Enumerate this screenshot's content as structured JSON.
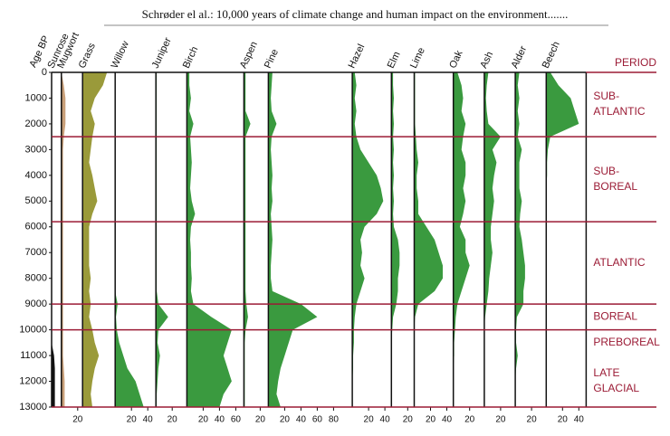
{
  "chart_data": {
    "type": "pollen",
    "title": "Schrøder el al.: 10,000 years of climate change and human impact on the environment.......",
    "ylabel": "Age BP",
    "ylim": [
      0,
      13000
    ],
    "yticks": [
      0,
      1000,
      2000,
      3000,
      4000,
      5000,
      6000,
      7000,
      8000,
      9000,
      10000,
      11000,
      12000,
      13000
    ],
    "x": [
      0,
      500,
      1000,
      1500,
      2000,
      2500,
      3000,
      3500,
      4000,
      4500,
      5000,
      5500,
      6000,
      6500,
      7000,
      7500,
      8000,
      8500,
      9000,
      9500,
      10000,
      10500,
      11000,
      11500,
      12000,
      12500,
      13000
    ],
    "series": [
      {
        "name": "Sunrose",
        "color": "#111111",
        "xlim": [
          0,
          12
        ],
        "values": [
          0,
          0,
          0,
          0,
          0,
          0,
          0,
          0,
          0,
          0,
          0,
          0,
          0,
          0,
          0,
          0,
          0,
          0,
          0,
          0,
          0,
          0,
          3,
          4,
          4,
          4,
          4
        ]
      },
      {
        "name": "Mugwort",
        "color": "#c9a07a",
        "xlim": [
          0,
          26
        ],
        "xticks": [
          20
        ],
        "values": [
          0,
          3,
          5,
          5,
          5,
          3,
          2,
          2,
          2,
          2,
          2,
          2,
          2,
          2,
          2,
          2,
          2,
          2,
          2,
          2,
          2,
          2,
          2,
          3,
          4,
          4,
          4
        ]
      },
      {
        "name": "Grass",
        "color": "#9a9a3a",
        "xlim": [
          0,
          40
        ],
        "values": [
          30,
          25,
          15,
          10,
          15,
          12,
          10,
          8,
          12,
          15,
          18,
          12,
          8,
          8,
          8,
          8,
          10,
          8,
          10,
          8,
          12,
          15,
          20,
          15,
          12,
          10,
          12
        ]
      },
      {
        "name": "Willow",
        "color": "#3a9a3f",
        "xlim": [
          0,
          50
        ],
        "xticks": [
          20,
          40
        ],
        "values": [
          0,
          0,
          0,
          0,
          0,
          0,
          0,
          0,
          0,
          0,
          0,
          0,
          0,
          0,
          0,
          0,
          0,
          0,
          3,
          1,
          2,
          5,
          10,
          15,
          25,
          30,
          35
        ]
      },
      {
        "name": "Juniper",
        "color": "#3a9a3f",
        "xlim": [
          0,
          38
        ],
        "xticks": [
          20
        ],
        "values": [
          1,
          1,
          1,
          1,
          1,
          1,
          1,
          1,
          1,
          1,
          1,
          1,
          1,
          1,
          1,
          1,
          1,
          1,
          3,
          15,
          3,
          2,
          5,
          3,
          2,
          1,
          1
        ]
      },
      {
        "name": "Birch",
        "color": "#3a9a3f",
        "xlim": [
          0,
          70
        ],
        "xticks": [
          20,
          40,
          60
        ],
        "values": [
          3,
          3,
          5,
          3,
          8,
          4,
          5,
          6,
          5,
          4,
          6,
          10,
          5,
          4,
          5,
          5,
          6,
          5,
          8,
          30,
          55,
          50,
          45,
          50,
          55,
          45,
          40
        ]
      },
      {
        "name": "Aspen",
        "color": "#3a9a3f",
        "xlim": [
          0,
          30
        ],
        "xticks": [
          20
        ],
        "values": [
          2,
          2,
          2,
          2,
          8,
          2,
          2,
          2,
          2,
          2,
          2,
          2,
          2,
          2,
          2,
          2,
          2,
          2,
          3,
          5,
          2,
          1,
          1,
          1,
          1,
          1,
          1
        ]
      },
      {
        "name": "Pine",
        "color": "#3a9a3f",
        "xlim": [
          0,
          103
        ],
        "xticks": [
          20,
          40,
          60,
          80
        ],
        "values": [
          5,
          4,
          3,
          4,
          10,
          4,
          3,
          4,
          5,
          4,
          5,
          3,
          4,
          5,
          4,
          3,
          3,
          5,
          40,
          60,
          30,
          25,
          20,
          15,
          12,
          10,
          15
        ]
      },
      {
        "name": "Hazel",
        "color": "#3a9a3f",
        "xlim": [
          0,
          48
        ],
        "xticks": [
          20,
          40
        ],
        "values": [
          3,
          5,
          3,
          5,
          3,
          5,
          10,
          20,
          30,
          35,
          38,
          30,
          15,
          10,
          12,
          10,
          15,
          10,
          5,
          3,
          2,
          2,
          1,
          1,
          0,
          0,
          0
        ]
      },
      {
        "name": "Elm",
        "color": "#3a9a3f",
        "xlim": [
          0,
          28
        ],
        "xticks": [
          20
        ],
        "values": [
          2,
          2,
          3,
          2,
          3,
          2,
          3,
          2,
          3,
          2,
          3,
          2,
          3,
          8,
          10,
          10,
          8,
          8,
          6,
          2,
          1,
          0,
          0,
          0,
          0,
          0,
          0
        ]
      },
      {
        "name": "Lime",
        "color": "#3a9a3f",
        "xlim": [
          0,
          48
        ],
        "xticks": [
          20,
          40
        ],
        "values": [
          1,
          1,
          1,
          1,
          1,
          2,
          3,
          5,
          3,
          3,
          5,
          5,
          15,
          25,
          30,
          35,
          35,
          25,
          5,
          1,
          0,
          0,
          0,
          0,
          0,
          0,
          0
        ]
      },
      {
        "name": "Oak",
        "color": "#3a9a3f",
        "xlim": [
          0,
          38
        ],
        "xticks": [
          20
        ],
        "values": [
          5,
          10,
          12,
          10,
          15,
          12,
          10,
          15,
          15,
          12,
          15,
          12,
          8,
          15,
          15,
          20,
          15,
          10,
          5,
          3,
          2,
          1,
          1,
          0,
          0,
          0,
          0
        ]
      },
      {
        "name": "Ash",
        "color": "#3a9a3f",
        "xlim": [
          0,
          38
        ],
        "xticks": [
          20
        ],
        "values": [
          5,
          3,
          2,
          3,
          5,
          20,
          10,
          15,
          12,
          10,
          12,
          10,
          8,
          8,
          10,
          8,
          6,
          5,
          3,
          1,
          0,
          0,
          0,
          0,
          0,
          0,
          0
        ]
      },
      {
        "name": "Alder",
        "color": "#3a9a3f",
        "xlim": [
          0,
          38
        ],
        "xticks": [
          20
        ],
        "values": [
          5,
          3,
          5,
          3,
          5,
          3,
          8,
          5,
          5,
          5,
          8,
          6,
          5,
          8,
          10,
          12,
          12,
          10,
          10,
          2,
          1,
          1,
          3,
          1,
          0,
          0,
          0
        ]
      },
      {
        "name": "Beech",
        "color": "#3a9a3f",
        "xlim": [
          0,
          49
        ],
        "xticks": [
          20,
          40
        ],
        "values": [
          5,
          15,
          30,
          35,
          40,
          5,
          2,
          1,
          1,
          0,
          0,
          0,
          0,
          0,
          0,
          0,
          0,
          0,
          0,
          0,
          0,
          0,
          0,
          0,
          0,
          0,
          0
        ]
      }
    ],
    "period_header": "PERIOD",
    "period_lines": [
      2500,
      5800,
      9000,
      10000,
      13000
    ],
    "periods": [
      {
        "label": [
          "SUB-",
          "ATLANTIC"
        ],
        "from": 0,
        "to": 2500
      },
      {
        "label": [
          "SUB-",
          "BOREAL"
        ],
        "from": 2500,
        "to": 5800
      },
      {
        "label": [
          "ATLANTIC"
        ],
        "from": 5800,
        "to": 9000
      },
      {
        "label": [
          "BOREAL"
        ],
        "from": 9000,
        "to": 10000
      },
      {
        "label": [
          "PREBOREAL"
        ],
        "from": 10000,
        "to": 11000
      },
      {
        "label": [
          "LATE",
          "GLACIAL"
        ],
        "from": 11000,
        "to": 13000
      }
    ]
  }
}
